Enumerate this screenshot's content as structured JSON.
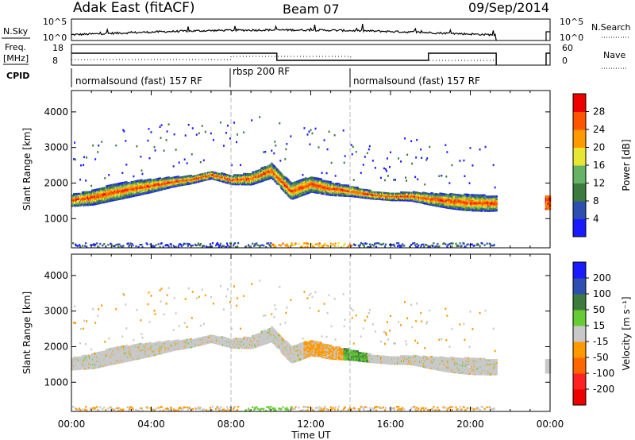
{
  "header": {
    "radar": "Adak East (fitACF)",
    "beam": "Beam 07",
    "date": "09/Sep/2014"
  },
  "top_panels": {
    "nsky_label": "N.Sky",
    "nsky_ticks": [
      "10^5",
      "10^0"
    ],
    "nsearch_label": "N.Search",
    "nsearch_ticks": [
      "10^5",
      "10^0"
    ],
    "freq_label": "Freq.",
    "freq_unit": "[MHz]",
    "freq_ticks": [
      "18",
      "8"
    ],
    "nave_label": "Nave",
    "nave_ticks": [
      "60",
      "0"
    ],
    "cpid_label": "CPID",
    "cpid_segments": [
      {
        "text": "normalsound (fast) 157 RF",
        "start_hr": 0,
        "end_hr": 8
      },
      {
        "text": "rbsp 200 RF",
        "start_hr": 8,
        "end_hr": 14
      },
      {
        "text": "normalsound (fast) 157 RF",
        "start_hr": 14,
        "end_hr": 21.3
      }
    ]
  },
  "x_axis": {
    "label": "Time UT",
    "tick_labels": [
      "00:00",
      "04:00",
      "08:00",
      "12:00",
      "16:00",
      "20:00",
      "00:00"
    ]
  },
  "y_axis": {
    "label": "Slant Range [km]",
    "tick_labels": [
      "1000",
      "2000",
      "3000",
      "4000"
    ]
  },
  "power_colorbar": {
    "label": "Power [dB]",
    "tick_labels": [
      "4",
      "8",
      "12",
      "16",
      "20",
      "24",
      "28"
    ],
    "colors": [
      "#1a1aff",
      "#2f4fb0",
      "#3d7a3d",
      "#66b366",
      "#e6e633",
      "#ff9900",
      "#ff5500",
      "#ee0000"
    ]
  },
  "velocity_colorbar": {
    "label": "Velocity [m s⁻¹]",
    "tick_labels": [
      "200",
      "100",
      "50",
      "15",
      "-15",
      "-50",
      "-100",
      "-200"
    ],
    "colors": [
      "#1a1aff",
      "#2f4fb0",
      "#3d7a3d",
      "#66cc33",
      "#c8c8c8",
      "#ff9900",
      "#ff6600",
      "#ff2222",
      "#ee0000"
    ]
  },
  "chart_data": [
    {
      "type": "heatmap",
      "title": "Power",
      "xlabel": "Time UT",
      "ylabel": "Slant Range [km]",
      "xlim_hours": [
        0,
        24
      ],
      "ylim_km": [
        180,
        4600
      ],
      "colorbar_label": "Power [dB]",
      "grid": false,
      "band_centerline_km": [
        [
          0.0,
          1550
        ],
        [
          1.0,
          1620
        ],
        [
          2.0,
          1760
        ],
        [
          3.0,
          1870
        ],
        [
          4.0,
          1960
        ],
        [
          5.0,
          2060
        ],
        [
          6.0,
          2130
        ],
        [
          7.0,
          2260
        ],
        [
          8.0,
          2120
        ],
        [
          9.0,
          2150
        ],
        [
          10.0,
          2380
        ],
        [
          11.0,
          1800
        ],
        [
          12.0,
          2000
        ],
        [
          13.0,
          1870
        ],
        [
          14.0,
          1800
        ],
        [
          15.0,
          1700
        ],
        [
          16.0,
          1650
        ],
        [
          17.0,
          1660
        ],
        [
          18.0,
          1580
        ],
        [
          19.0,
          1520
        ],
        [
          20.0,
          1480
        ],
        [
          21.0,
          1460
        ]
      ]
    },
    {
      "type": "heatmap",
      "title": "Velocity",
      "xlabel": "Time UT",
      "ylabel": "Slant Range [km]",
      "xlim_hours": [
        0,
        24
      ],
      "ylim_km": [
        180,
        4600
      ],
      "colorbar_label": "Velocity [m s⁻¹]",
      "grid": false,
      "dominant_velocity_bin": "-15 to 15"
    }
  ]
}
